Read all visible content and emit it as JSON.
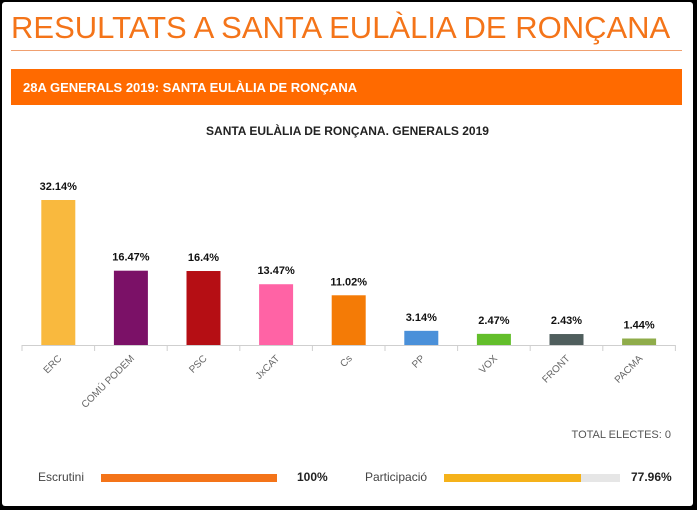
{
  "page": {
    "title": "RESULTATS A SANTA EULÀLIA DE RONÇANA",
    "section_header": "28A GENERALS 2019: SANTA EULÀLIA DE RONÇANA",
    "accent_color": "#ff6a00"
  },
  "chart_data": {
    "type": "bar",
    "title": "SANTA EULÀLIA DE RONÇANA. GENERALS 2019",
    "categories": [
      "ERC",
      "COMÚ PODEM",
      "PSC",
      "JxCAT",
      "Cs",
      "PP",
      "VOX",
      "FRONT",
      "PACMA"
    ],
    "values": [
      32.14,
      16.47,
      16.4,
      13.47,
      11.02,
      3.14,
      2.47,
      2.43,
      1.44
    ],
    "data_labels": [
      "32.14%",
      "16.47%",
      "16.4%",
      "13.47%",
      "11.02%",
      "3.14%",
      "2.47%",
      "2.43%",
      "1.44%"
    ],
    "colors": [
      "#f9b93e",
      "#7b1167",
      "#b50e14",
      "#ff63a5",
      "#f47b06",
      "#4a90d9",
      "#63be2b",
      "#4f5e5d",
      "#8fac4a"
    ],
    "ylim": [
      0,
      32.14
    ],
    "grid": false,
    "legend": "none"
  },
  "footer": {
    "total_electors": "TOTAL ELECTES: 0",
    "scrutiny": {
      "label": "Escrutini",
      "value_text": "100%",
      "percent": 100,
      "color": "#f47419"
    },
    "participation": {
      "label": "Participació",
      "value_text": "77.96%",
      "percent": 77.96,
      "color": "#f5b21a"
    }
  }
}
